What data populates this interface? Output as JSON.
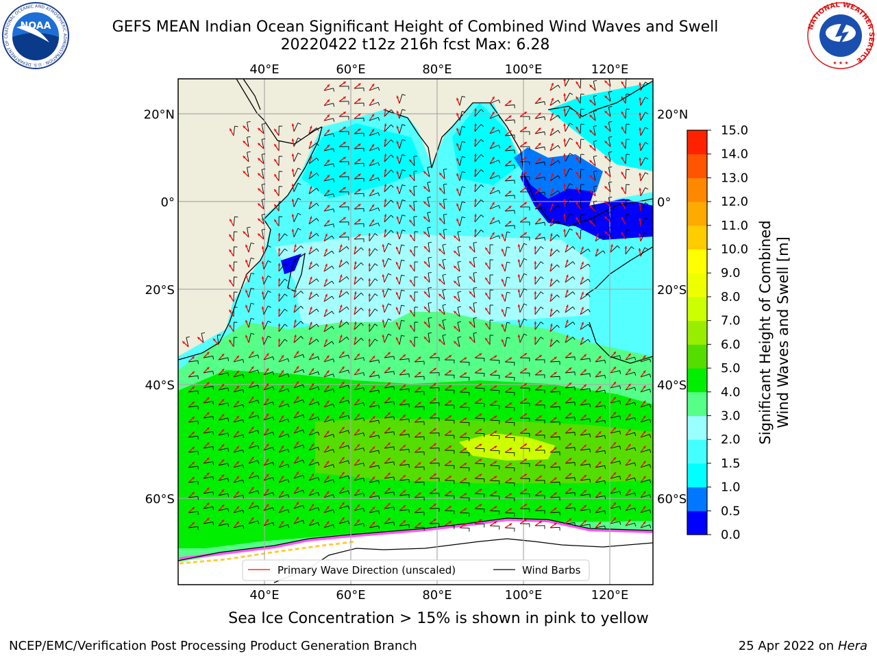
{
  "title": {
    "line1": "GEFS MEAN Indian Ocean Significant Height of Combined Wind Waves and Swell",
    "line2": "20220422 t12z 216h fcst   Max: 6.28"
  },
  "axes": {
    "lon_labels": [
      "40°E",
      "60°E",
      "80°E",
      "100°E",
      "120°E"
    ],
    "lat_labels": [
      "20°N",
      "0°",
      "20°S",
      "40°S",
      "60°S"
    ]
  },
  "legend": {
    "wave_label": "Primary Wave Direction (unscaled)",
    "barb_label": "Wind Barbs",
    "wave_color": "#ff0000",
    "barb_color": "#000000"
  },
  "colorbar": {
    "label_line1": "Significant Height of Combined",
    "label_line2": "Wind Waves and Swell [m]",
    "ticks": [
      "0.0",
      "0.5",
      "1.0",
      "1.5",
      "2.0",
      "3.0",
      "4.0",
      "5.0",
      "6.0",
      "7.0",
      "8.0",
      "9.0",
      "10.0",
      "11.0",
      "12.0",
      "13.0",
      "14.0",
      "15.0"
    ],
    "colors": [
      "#0000ff",
      "#0077ff",
      "#00ffff",
      "#44ffff",
      "#99ffff",
      "#55ff88",
      "#00ee00",
      "#55dd00",
      "#99ee00",
      "#ccff00",
      "#eeff00",
      "#ffff00",
      "#ffcc00",
      "#ffaa00",
      "#ff8800",
      "#ff5500",
      "#ff2200"
    ]
  },
  "caption": "Sea Ice Concentration > 15% is shown in pink to yellow",
  "footer": {
    "left": "NCEP/EMC/Verification Post Processing Product Generation Branch",
    "right_date": "25 Apr 2022 on ",
    "right_host": "Hera"
  },
  "logos": {
    "noaa": "NOAA",
    "noaa_ring": "NATIONAL OCEANIC AND ATMOSPHERIC ADMINISTRATION · U.S. DEPARTMENT OF COMMERCE",
    "nws_ring": "NATIONAL WEATHER SERVICE"
  }
}
